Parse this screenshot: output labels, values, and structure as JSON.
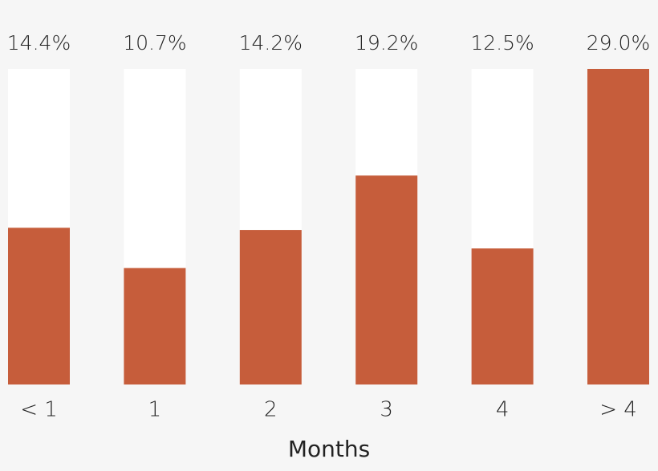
{
  "chart_data": {
    "type": "bar",
    "x_label": "Months",
    "categories": [
      "< 1",
      "1",
      "2",
      "3",
      "4",
      "> 4"
    ],
    "values": [
      14.4,
      10.7,
      14.2,
      19.2,
      12.5,
      29.0
    ],
    "value_labels": [
      "14.4%",
      "10.7%",
      "14.2%",
      "19.2%",
      "12.5%",
      "29.0%"
    ],
    "color": "#c65d3b",
    "ylim": [
      0,
      29.0
    ]
  }
}
